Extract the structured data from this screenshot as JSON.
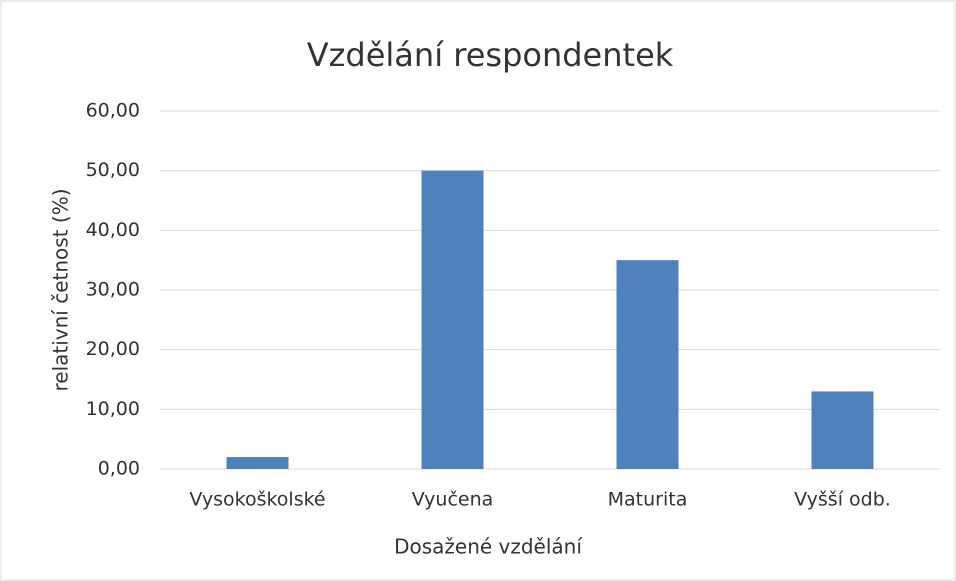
{
  "chart_data": {
    "type": "bar",
    "title": "Vzdělání respondentek",
    "x_label": "Dosažené vzdělání",
    "y_label": "relativní četnost (%)",
    "categories": [
      "Vysokoškolské",
      "Vyučena",
      "Maturita",
      "Vyšší odb."
    ],
    "values": [
      2,
      50,
      35,
      13
    ],
    "color": "#4f81bd",
    "ylim": [
      0,
      60
    ],
    "yticks": [
      {
        "value": 0,
        "label": "0,00"
      },
      {
        "value": 10,
        "label": "10,00"
      },
      {
        "value": 20,
        "label": "20,00"
      },
      {
        "value": 30,
        "label": "30,00"
      },
      {
        "value": 40,
        "label": "40,00"
      },
      {
        "value": 50,
        "label": "50,00"
      },
      {
        "value": 60,
        "label": "60,00"
      }
    ],
    "grid": true
  }
}
